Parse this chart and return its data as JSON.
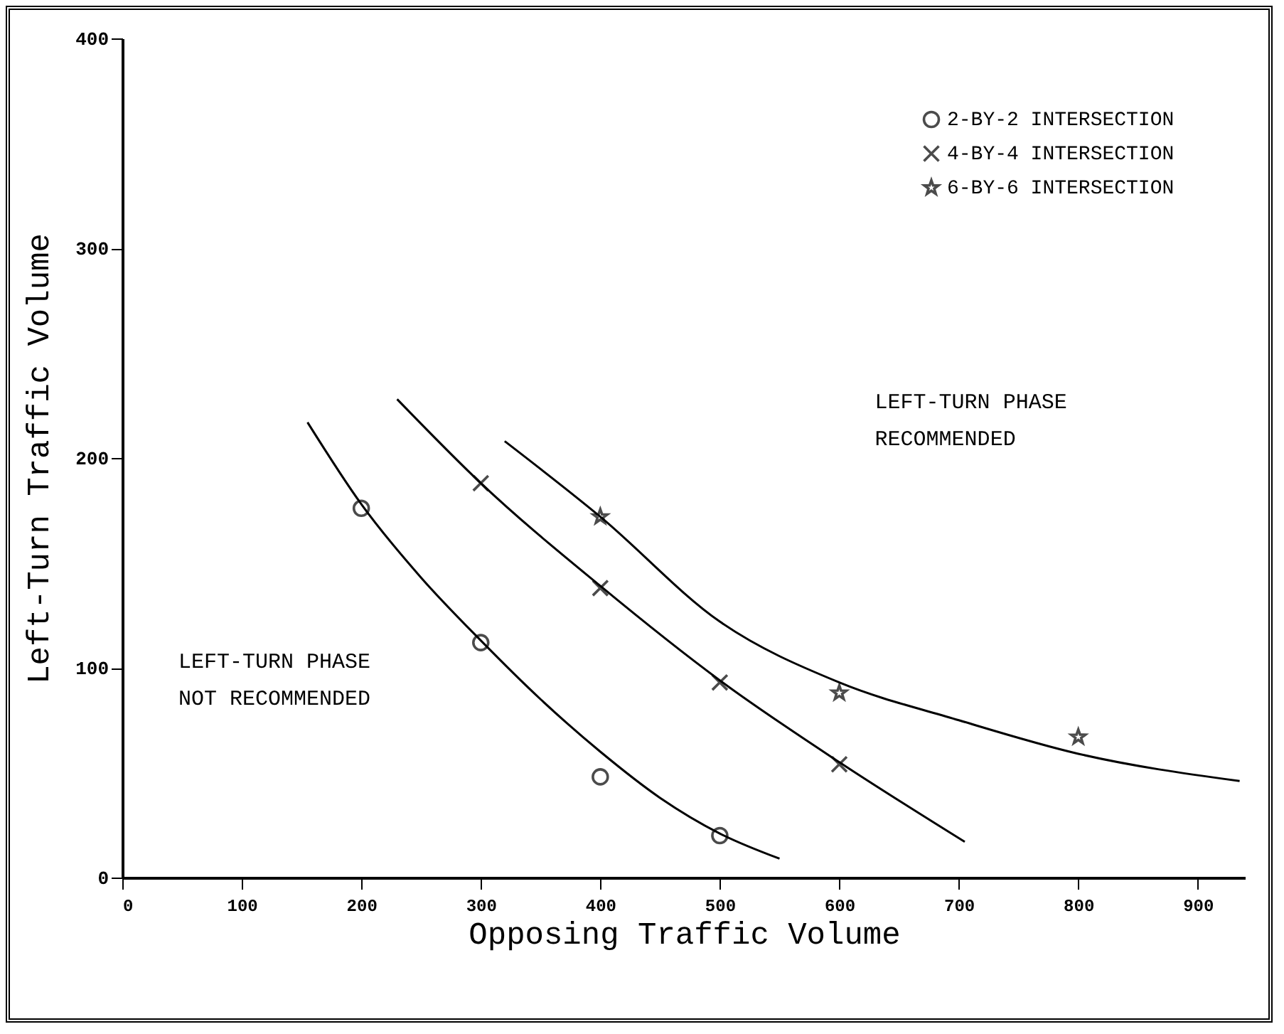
{
  "chart_data": {
    "type": "scatter",
    "xlabel": "Opposing Traffic Volume",
    "ylabel": "Left-Turn Traffic Volume",
    "xlim": [
      0,
      940
    ],
    "xticks": [
      0,
      100,
      200,
      300,
      400,
      500,
      600,
      700,
      800,
      900
    ],
    "ylim": [
      0,
      400
    ],
    "yticks": [
      0,
      100,
      200,
      300,
      400
    ],
    "grid": false,
    "legend": "top right",
    "series": [
      {
        "name": "2-BY-2 INTERSECTION",
        "marker": "circle",
        "color": "#000000",
        "x": [
          200,
          300,
          400,
          500
        ],
        "values": [
          176,
          112,
          48,
          20
        ]
      },
      {
        "name": "4-BY-4 INTERSECTION",
        "marker": "cross",
        "color": "#000000",
        "x": [
          300,
          400,
          500,
          600
        ],
        "values": [
          188,
          138,
          93,
          54
        ]
      },
      {
        "name": "6-BY-6 INTERSECTION",
        "marker": "star",
        "color": "#000000",
        "x": [
          400,
          600,
          800
        ],
        "values": [
          172,
          88,
          67
        ]
      },
      {
        "type": "line",
        "color": "#000000",
        "x": [
          155,
          200,
          250,
          300,
          350,
          400,
          450,
          500,
          550
        ],
        "values": [
          217,
          178,
          143,
          113,
          85,
          60,
          38,
          21,
          9
        ]
      },
      {
        "type": "line",
        "color": "#000000",
        "x": [
          230,
          300,
          400,
          500,
          600,
          705
        ],
        "values": [
          228,
          188,
          139,
          94,
          55,
          17
        ]
      },
      {
        "type": "line",
        "color": "#000000",
        "x": [
          320,
          400,
          500,
          600,
          700,
          800,
          935
        ],
        "values": [
          208,
          172,
          122,
          93,
          75,
          59,
          46
        ]
      }
    ],
    "annotations": [
      "LEFT-TURN PHASE\nRECOMMENDED",
      "LEFT-TURN PHASE\nNOT RECOMMENDED"
    ]
  }
}
